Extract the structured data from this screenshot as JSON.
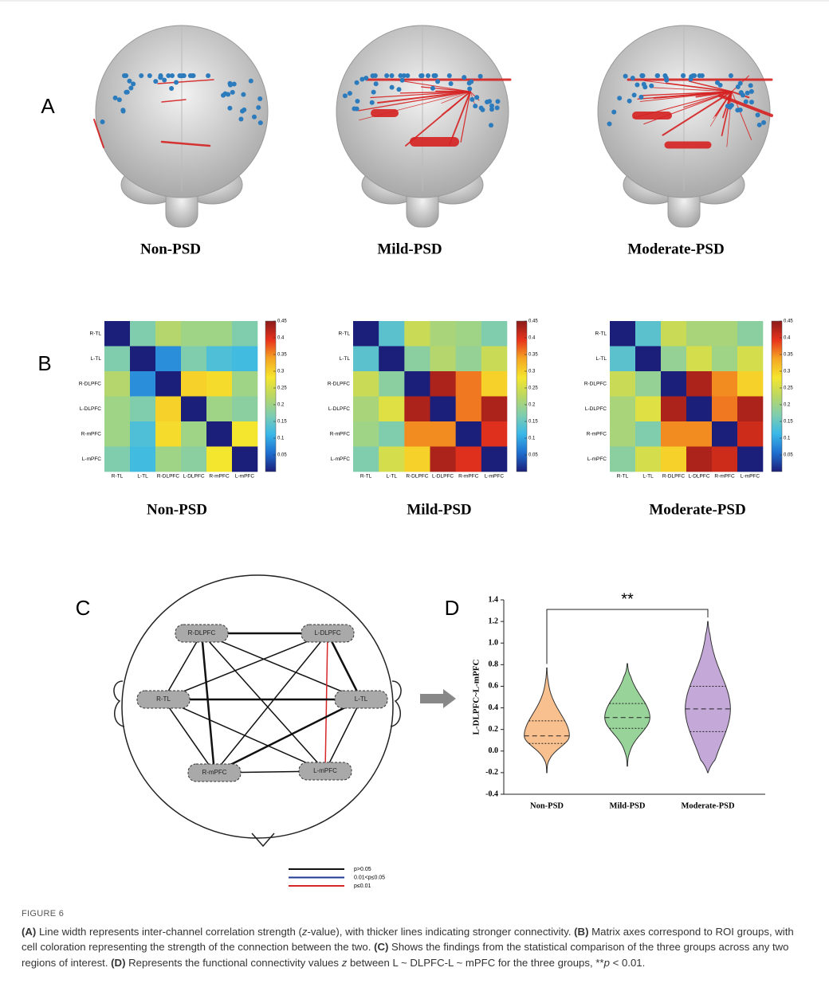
{
  "panel_labels": [
    "A",
    "B",
    "C",
    "D"
  ],
  "brains": {
    "titles": [
      "Non-PSD",
      "Mild-PSD",
      "Moderate-PSD"
    ]
  },
  "chart_data": [
    {
      "type": "heatmap",
      "title": "Non-PSD",
      "categories": [
        "R-TL",
        "L-TL",
        "R-DLPFC",
        "L-DLPFC",
        "R-mPFC",
        "L-mPFC"
      ],
      "values": [
        [
          0,
          0.17,
          0.22,
          0.2,
          0.2,
          0.17
        ],
        [
          0.17,
          0,
          0.08,
          0.17,
          0.13,
          0.12
        ],
        [
          0.22,
          0.08,
          0,
          0.3,
          0.29,
          0.2
        ],
        [
          0.2,
          0.17,
          0.3,
          0,
          0.2,
          0.18
        ],
        [
          0.2,
          0.13,
          0.29,
          0.2,
          0,
          0.28
        ],
        [
          0.17,
          0.12,
          0.2,
          0.18,
          0.28,
          0
        ]
      ],
      "zlim": [
        0,
        0.45
      ],
      "zticks": [
        0.45,
        0.4,
        0.35,
        0.3,
        0.25,
        0.2,
        0.15,
        0.1,
        0.05
      ],
      "colormap": [
        "#1c1f7a",
        "#1f6fd0",
        "#39b8e8",
        "#7fcdb0",
        "#b9d765",
        "#f5e62e",
        "#f5a623",
        "#e8331c",
        "#8b1a1a"
      ]
    },
    {
      "type": "heatmap",
      "title": "Mild-PSD",
      "categories": [
        "R-TL",
        "L-TL",
        "R-DLPFC",
        "L-DLPFC",
        "R-mPFC",
        "L-mPFC"
      ],
      "values": [
        [
          0,
          0.14,
          0.24,
          0.21,
          0.2,
          0.17
        ],
        [
          0.14,
          0,
          0.18,
          0.22,
          0.19,
          0.24
        ],
        [
          0.24,
          0.18,
          0,
          0.43,
          0.36,
          0.3
        ],
        [
          0.21,
          0.26,
          0.43,
          0,
          0.36,
          0.43
        ],
        [
          0.2,
          0.17,
          0.35,
          0.35,
          0,
          0.4
        ],
        [
          0.17,
          0.25,
          0.3,
          0.43,
          0.4,
          0
        ]
      ],
      "zlim": [
        0,
        0.45
      ],
      "zticks": [
        0.45,
        0.4,
        0.35,
        0.3,
        0.25,
        0.2,
        0.15,
        0.1,
        0.05
      ],
      "colormap": [
        "#1c1f7a",
        "#1f6fd0",
        "#39b8e8",
        "#7fcdb0",
        "#b9d765",
        "#f5e62e",
        "#f5a623",
        "#e8331c",
        "#8b1a1a"
      ]
    },
    {
      "type": "heatmap",
      "title": "Moderate-PSD",
      "categories": [
        "R-TL",
        "L-TL",
        "R-DLPFC",
        "L-DLPFC",
        "R-mPFC",
        "L-mPFC"
      ],
      "values": [
        [
          0,
          0.14,
          0.24,
          0.21,
          0.21,
          0.18
        ],
        [
          0.14,
          0,
          0.19,
          0.25,
          0.2,
          0.25
        ],
        [
          0.24,
          0.19,
          0,
          0.43,
          0.35,
          0.3
        ],
        [
          0.21,
          0.26,
          0.43,
          0,
          0.36,
          0.43
        ],
        [
          0.21,
          0.17,
          0.35,
          0.35,
          0,
          0.41
        ],
        [
          0.18,
          0.25,
          0.3,
          0.43,
          0.41,
          0
        ]
      ],
      "zlim": [
        0,
        0.45
      ],
      "zticks": [
        0.45,
        0.4,
        0.35,
        0.3,
        0.25,
        0.2,
        0.15,
        0.1,
        0.05
      ],
      "colormap": [
        "#1c1f7a",
        "#1f6fd0",
        "#39b8e8",
        "#7fcdb0",
        "#b9d765",
        "#f5e62e",
        "#f5a623",
        "#e8331c",
        "#8b1a1a"
      ]
    },
    {
      "type": "violin",
      "ylabel": "L-DLPFC~L-mPFC",
      "categories": [
        "Non-PSD",
        "Mild-PSD",
        "Moderate-PSD"
      ],
      "series": [
        {
          "color": "#f8c08e",
          "min": -0.2,
          "q1": 0.07,
          "median": 0.14,
          "q3": 0.28,
          "max": 0.77
        },
        {
          "color": "#98d49a",
          "min": -0.14,
          "q1": 0.21,
          "median": 0.31,
          "q3": 0.44,
          "max": 0.81
        },
        {
          "color": "#c3a8d8",
          "min": -0.2,
          "q1": 0.18,
          "median": 0.39,
          "q3": 0.6,
          "max": 1.2
        }
      ],
      "ylim": [
        -0.4,
        1.4
      ],
      "yticks": [
        1.4,
        1.2,
        {
          "value": 1,
          "label": "1.0"
        },
        0.8,
        0.6,
        0.4,
        0.2,
        {
          "value": 0,
          "label": "0.0"
        },
        -0.2,
        -0.4
      ],
      "annotation": "**"
    }
  ],
  "diagram": {
    "nodes": [
      "R-DLPFC",
      "L-DLPFC",
      "R-TL",
      "L-TL",
      "R-mPFC",
      "L-mPFC"
    ],
    "edges": [
      {
        "from": 0,
        "to": 1,
        "color": "#111111"
      },
      {
        "from": 0,
        "to": 2,
        "color": "#111111"
      },
      {
        "from": 0,
        "to": 3,
        "color": "#111111"
      },
      {
        "from": 0,
        "to": 4,
        "color": "#111111"
      },
      {
        "from": 0,
        "to": 5,
        "color": "#111111"
      },
      {
        "from": 1,
        "to": 2,
        "color": "#111111"
      },
      {
        "from": 1,
        "to": 3,
        "color": "#111111"
      },
      {
        "from": 1,
        "to": 4,
        "color": "#111111"
      },
      {
        "from": 1,
        "to": 5,
        "color": "#d62728"
      },
      {
        "from": 2,
        "to": 3,
        "color": "#111111"
      },
      {
        "from": 2,
        "to": 4,
        "color": "#111111"
      },
      {
        "from": 2,
        "to": 5,
        "color": "#111111"
      },
      {
        "from": 3,
        "to": 4,
        "color": "#111111"
      },
      {
        "from": 3,
        "to": 5,
        "color": "#111111"
      },
      {
        "from": 4,
        "to": 5,
        "color": "#111111"
      }
    ],
    "legend": [
      {
        "label": "p>0.05",
        "color": "#111111"
      },
      {
        "label": "0.01<p≤0.05",
        "color": "#1f3a93"
      },
      {
        "label": "p≤0.01",
        "color": "#d62728"
      }
    ]
  },
  "caption": {
    "label": "FIGURE 6",
    "parts": [
      "(A)",
      " Line width represents inter-channel correlation strength (",
      "z",
      "-value), with thicker lines indicating stronger connectivity. ",
      "(B)",
      " Matrix axes correspond to ROI groups, with cell coloration representing the strength of the connection between the two. ",
      "(C)",
      " Shows the findings from the statistical comparison of the three groups across any two regions of interest. ",
      "(D)",
      " Represents the functional connectivity values ",
      "z",
      " between L ~ DLPFC-L ~ mPFC for the three groups, **",
      "p",
      " < 0.01."
    ]
  }
}
